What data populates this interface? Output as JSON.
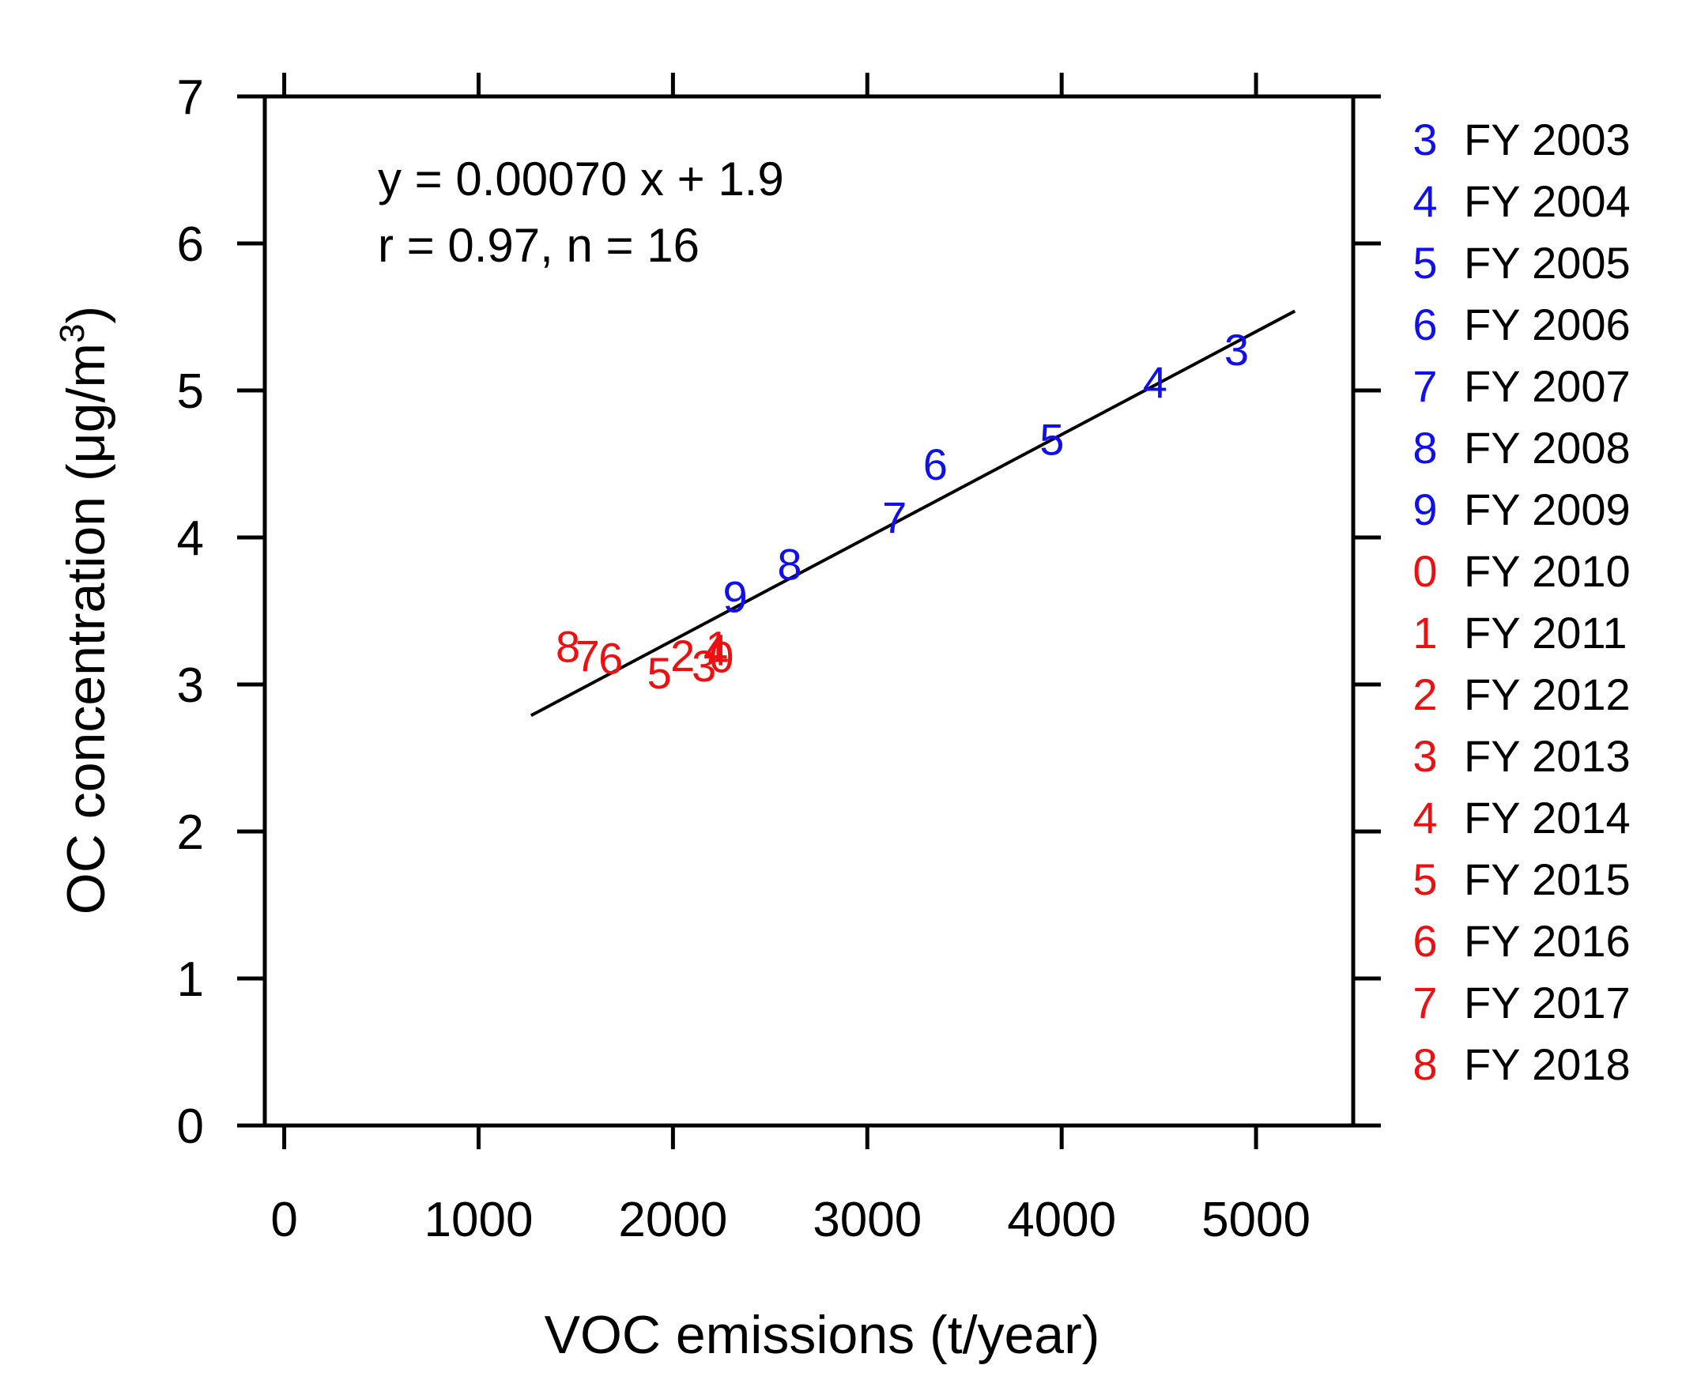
{
  "chart_data": {
    "type": "scatter",
    "title": "",
    "xlabel": "VOC emissions (t/year)",
    "ylabel_main": "OC concentration (μg/m",
    "ylabel_sup": "3",
    "ylabel_close": ")",
    "xlim": [
      -100,
      5500
    ],
    "ylim": [
      0,
      7
    ],
    "xticks": [
      0,
      1000,
      2000,
      3000,
      4000,
      5000
    ],
    "xtick_labels": [
      "0",
      "1000",
      "2000",
      "3000",
      "4000",
      "5000"
    ],
    "yticks": [
      0,
      1,
      2,
      3,
      4,
      5,
      6,
      7
    ],
    "ytick_labels": [
      "0",
      "1",
      "2",
      "3",
      "4",
      "5",
      "6",
      "7"
    ],
    "grid": false,
    "legend_position": "right",
    "colors": {
      "early": "#1010ee",
      "late": "#ee1010",
      "line": "#000000"
    },
    "annotation_lines": [
      "y = 0.00070 x + 1.9",
      "r = 0.97, n = 16"
    ],
    "regression": {
      "slope": 0.0007,
      "intercept": 1.9,
      "x_range": [
        1270,
        5200
      ]
    },
    "points": [
      {
        "label": "3",
        "year": "FY 2003",
        "x": 4900,
        "y": 5.28,
        "group": "early"
      },
      {
        "label": "4",
        "year": "FY 2004",
        "x": 4480,
        "y": 5.06,
        "group": "early"
      },
      {
        "label": "5",
        "year": "FY 2005",
        "x": 3950,
        "y": 4.67,
        "group": "early"
      },
      {
        "label": "6",
        "year": "FY 2006",
        "x": 3350,
        "y": 4.5,
        "group": "early"
      },
      {
        "label": "7",
        "year": "FY 2007",
        "x": 3140,
        "y": 4.14,
        "group": "early"
      },
      {
        "label": "8",
        "year": "FY 2008",
        "x": 2600,
        "y": 3.82,
        "group": "early"
      },
      {
        "label": "9",
        "year": "FY 2009",
        "x": 2320,
        "y": 3.6,
        "group": "early"
      },
      {
        "label": "0",
        "year": "FY 2010",
        "x": 2250,
        "y": 3.19,
        "group": "late"
      },
      {
        "label": "1",
        "year": "FY 2011",
        "x": 2230,
        "y": 3.26,
        "group": "late"
      },
      {
        "label": "2",
        "year": "FY 2012",
        "x": 2050,
        "y": 3.2,
        "group": "late"
      },
      {
        "label": "3",
        "year": "FY 2013",
        "x": 2160,
        "y": 3.13,
        "group": "late"
      },
      {
        "label": "4",
        "year": "FY 2014",
        "x": 2220,
        "y": 3.24,
        "group": "late"
      },
      {
        "label": "5",
        "year": "FY 2015",
        "x": 1930,
        "y": 3.08,
        "group": "late"
      },
      {
        "label": "6",
        "year": "FY 2016",
        "x": 1680,
        "y": 3.18,
        "group": "late"
      },
      {
        "label": "7",
        "year": "FY 2017",
        "x": 1560,
        "y": 3.2,
        "group": "late"
      },
      {
        "label": "8",
        "year": "FY 2018",
        "x": 1460,
        "y": 3.26,
        "group": "late"
      }
    ]
  }
}
